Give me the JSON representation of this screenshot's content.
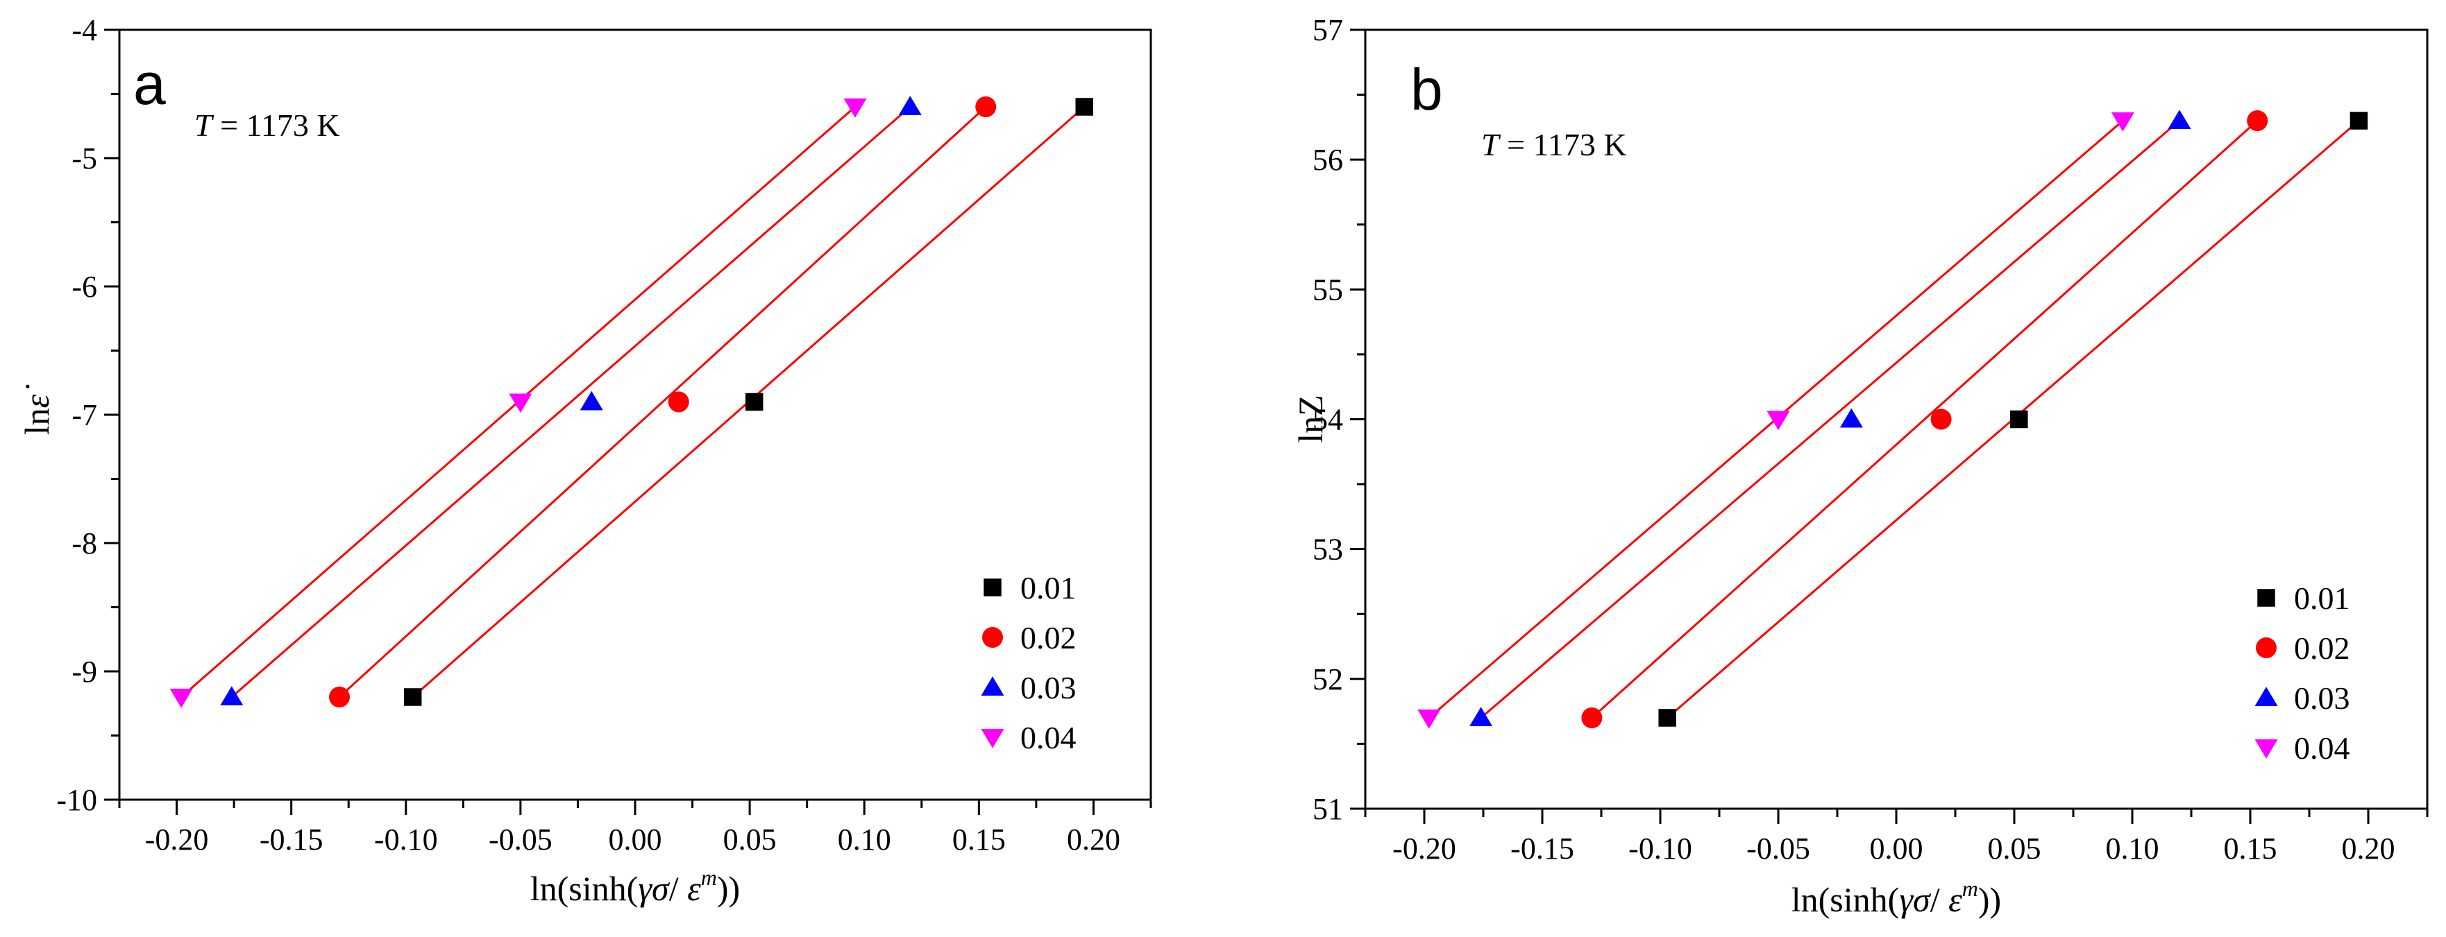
{
  "chart_data": [
    {
      "type": "scatter",
      "panel_label": "a",
      "annotation": {
        "italic": "T",
        "text": " = 1173 K"
      },
      "xlabel_parts": [
        "ln(sinh(",
        "γσ",
        "/ ",
        "ε",
        "m",
        "))"
      ],
      "ylabel_parts": [
        "ln",
        "ε̇"
      ],
      "xlim": [
        -0.225,
        0.225
      ],
      "ylim": [
        -10,
        -4
      ],
      "xticks": [
        -0.2,
        -0.15,
        -0.1,
        -0.05,
        0.0,
        0.05,
        0.1,
        0.15,
        0.2
      ],
      "xtick_labels": [
        "-0.20",
        "-0.15",
        "-0.10",
        "-0.05",
        "0.00",
        "0.05",
        "0.10",
        "0.15",
        "0.20"
      ],
      "yticks": [
        -10,
        -9,
        -8,
        -7,
        -6,
        -5,
        -4
      ],
      "ytick_labels": [
        "-10",
        "-9",
        "-8",
        "-7",
        "-6",
        "-5",
        "-4"
      ],
      "legend_position": "bottom-right",
      "series": [
        {
          "name": "0.01",
          "marker": "square",
          "color": "#000000",
          "x": [
            -0.097,
            0.052,
            0.196
          ],
          "y": [
            -9.2,
            -6.9,
            -4.6
          ]
        },
        {
          "name": "0.02",
          "marker": "circle",
          "color": "#ff0000",
          "x": [
            -0.129,
            0.019,
            0.153
          ],
          "y": [
            -9.2,
            -6.9,
            -4.6
          ]
        },
        {
          "name": "0.03",
          "marker": "triangle-up",
          "color": "#0000ff",
          "x": [
            -0.176,
            -0.019,
            0.12
          ],
          "y": [
            -9.2,
            -6.9,
            -4.6
          ]
        },
        {
          "name": "0.04",
          "marker": "triangle-down",
          "color": "#ff00ff",
          "x": [
            -0.198,
            -0.05,
            0.096
          ],
          "y": [
            -9.2,
            -6.9,
            -4.6
          ]
        }
      ],
      "fit_color": "#ff0000"
    },
    {
      "type": "scatter",
      "panel_label": "b",
      "annotation": {
        "italic": "T",
        "text": " = 1173 K"
      },
      "xlabel_parts": [
        "ln(sinh(",
        "γσ",
        "/ ",
        "ε",
        "m",
        "))"
      ],
      "ylabel_parts": [
        "lnZ"
      ],
      "xlim": [
        -0.225,
        0.225
      ],
      "ylim": [
        51,
        57
      ],
      "xticks": [
        -0.2,
        -0.15,
        -0.1,
        -0.05,
        0.0,
        0.05,
        0.1,
        0.15,
        0.2
      ],
      "xtick_labels": [
        "-0.20",
        "-0.15",
        "-0.10",
        "-0.05",
        "0.00",
        "0.05",
        "0.10",
        "0.15",
        "0.20"
      ],
      "yticks": [
        51,
        52,
        53,
        54,
        55,
        56,
        57
      ],
      "ytick_labels": [
        "51",
        "52",
        "53",
        "54",
        "55",
        "56",
        "57"
      ],
      "legend_position": "bottom-right",
      "series": [
        {
          "name": "0.01",
          "marker": "square",
          "color": "#000000",
          "x": [
            -0.097,
            0.052,
            0.196
          ],
          "y": [
            51.7,
            54.0,
            56.3
          ]
        },
        {
          "name": "0.02",
          "marker": "circle",
          "color": "#ff0000",
          "x": [
            -0.129,
            0.019,
            0.153
          ],
          "y": [
            51.7,
            54.0,
            56.3
          ]
        },
        {
          "name": "0.03",
          "marker": "triangle-up",
          "color": "#0000ff",
          "x": [
            -0.176,
            -0.019,
            0.12
          ],
          "y": [
            51.7,
            54.0,
            56.3
          ]
        },
        {
          "name": "0.04",
          "marker": "triangle-down",
          "color": "#ff00ff",
          "x": [
            -0.198,
            -0.05,
            0.096
          ],
          "y": [
            51.7,
            54.0,
            56.3
          ]
        }
      ],
      "fit_color": "#ff0000"
    }
  ]
}
